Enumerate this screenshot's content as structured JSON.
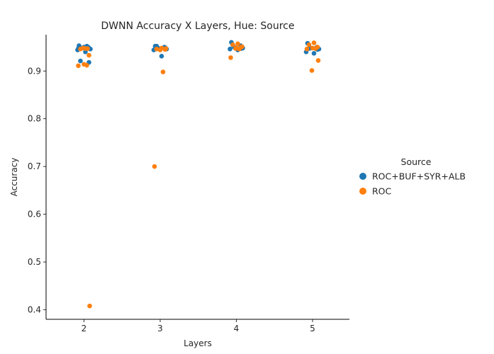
{
  "chart_data": {
    "type": "scatter",
    "title": "DWNN Accuracy X Layers, Hue: Source",
    "xlabel": "Layers",
    "ylabel": "Accuracy",
    "categories": [
      "2",
      "3",
      "4",
      "5"
    ],
    "y_ticks": [
      "0.4",
      "0.5",
      "0.6",
      "0.7",
      "0.8",
      "0.9"
    ],
    "ylim": [
      0.38,
      0.976
    ],
    "grid": false,
    "legend": {
      "title": "Source",
      "placement": "right",
      "entries": [
        "ROC+BUF+SYR+ALB",
        "ROC"
      ]
    },
    "colors": {
      "ROC+BUF+SYR+ALB": "#1f77b4",
      "ROC": "#ff7f0e"
    },
    "series": [
      {
        "name": "ROC+BUF+SYR+ALB",
        "points": [
          {
            "category": "2",
            "y": 0.953
          },
          {
            "category": "2",
            "y": 0.95
          },
          {
            "category": "2",
            "y": 0.948
          },
          {
            "category": "2",
            "y": 0.946
          },
          {
            "category": "2",
            "y": 0.944
          },
          {
            "category": "2",
            "y": 0.94
          },
          {
            "category": "2",
            "y": 0.921
          },
          {
            "category": "2",
            "y": 0.918
          },
          {
            "category": "2",
            "y": 0.95
          },
          {
            "category": "2",
            "y": 0.952
          },
          {
            "category": "2",
            "y": 0.947
          },
          {
            "category": "3",
            "y": 0.952
          },
          {
            "category": "3",
            "y": 0.95
          },
          {
            "category": "3",
            "y": 0.948
          },
          {
            "category": "3",
            "y": 0.946
          },
          {
            "category": "3",
            "y": 0.944
          },
          {
            "category": "3",
            "y": 0.931
          },
          {
            "category": "3",
            "y": 0.952
          },
          {
            "category": "3",
            "y": 0.949
          },
          {
            "category": "4",
            "y": 0.96
          },
          {
            "category": "4",
            "y": 0.953
          },
          {
            "category": "4",
            "y": 0.95
          },
          {
            "category": "4",
            "y": 0.948
          },
          {
            "category": "4",
            "y": 0.946
          },
          {
            "category": "4",
            "y": 0.944
          },
          {
            "category": "4",
            "y": 0.954
          },
          {
            "category": "4",
            "y": 0.947
          },
          {
            "category": "5",
            "y": 0.958
          },
          {
            "category": "5",
            "y": 0.95
          },
          {
            "category": "5",
            "y": 0.948
          },
          {
            "category": "5",
            "y": 0.946
          },
          {
            "category": "5",
            "y": 0.94
          },
          {
            "category": "5",
            "y": 0.937
          },
          {
            "category": "5",
            "y": 0.947
          },
          {
            "category": "5",
            "y": 0.945
          }
        ]
      },
      {
        "name": "ROC",
        "points": [
          {
            "category": "2",
            "y": 0.947
          },
          {
            "category": "2",
            "y": 0.946
          },
          {
            "category": "2",
            "y": 0.933
          },
          {
            "category": "2",
            "y": 0.914
          },
          {
            "category": "2",
            "y": 0.912
          },
          {
            "category": "2",
            "y": 0.911
          },
          {
            "category": "2",
            "y": 0.408
          },
          {
            "category": "2",
            "y": 0.948
          },
          {
            "category": "2",
            "y": 0.947
          },
          {
            "category": "3",
            "y": 0.948
          },
          {
            "category": "3",
            "y": 0.946
          },
          {
            "category": "3",
            "y": 0.945
          },
          {
            "category": "3",
            "y": 0.944
          },
          {
            "category": "3",
            "y": 0.898
          },
          {
            "category": "3",
            "y": 0.7
          },
          {
            "category": "3",
            "y": 0.947
          },
          {
            "category": "4",
            "y": 0.957
          },
          {
            "category": "4",
            "y": 0.955
          },
          {
            "category": "4",
            "y": 0.95
          },
          {
            "category": "4",
            "y": 0.948
          },
          {
            "category": "4",
            "y": 0.946
          },
          {
            "category": "4",
            "y": 0.928
          },
          {
            "category": "4",
            "y": 0.951
          },
          {
            "category": "4",
            "y": 0.947
          },
          {
            "category": "5",
            "y": 0.959
          },
          {
            "category": "5",
            "y": 0.955
          },
          {
            "category": "5",
            "y": 0.95
          },
          {
            "category": "5",
            "y": 0.948
          },
          {
            "category": "5",
            "y": 0.947
          },
          {
            "category": "5",
            "y": 0.946
          },
          {
            "category": "5",
            "y": 0.922
          },
          {
            "category": "5",
            "y": 0.901
          }
        ]
      }
    ]
  }
}
